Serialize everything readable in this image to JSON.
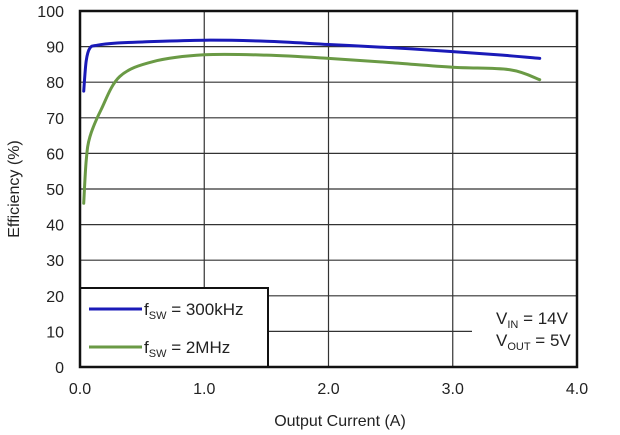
{
  "chart_data": {
    "type": "line",
    "title": "",
    "xlabel": "Output Current (A)",
    "ylabel": "Efficiency (%)",
    "xlim": [
      0,
      4
    ],
    "ylim": [
      0,
      100
    ],
    "xticks": [
      "0.0",
      "1.0",
      "2.0",
      "3.0",
      "4.0"
    ],
    "yticks": [
      "0",
      "10",
      "20",
      "30",
      "40",
      "50",
      "60",
      "70",
      "80",
      "90",
      "100"
    ],
    "grid": true,
    "legend_position": "bottom-left",
    "series": [
      {
        "name": "fSW = 300kHz",
        "label_main": "f",
        "label_sub": "SW",
        "label_rest": " = 300kHz",
        "color": "#1a1ab8",
        "x": [
          0.03,
          0.05,
          0.08,
          0.14,
          0.3,
          0.5,
          1.0,
          1.5,
          2.0,
          2.5,
          3.0,
          3.4,
          3.7
        ],
        "y": [
          77.5,
          86,
          89.6,
          90.4,
          91.0,
          91.3,
          91.8,
          91.5,
          90.6,
          89.7,
          88.6,
          87.6,
          86.7
        ]
      },
      {
        "name": "fSW = 2MHz",
        "label_main": "f",
        "label_sub": "SW",
        "label_rest": " = 2MHz",
        "color": "#6a9a45",
        "x": [
          0.03,
          0.05,
          0.08,
          0.17,
          0.32,
          0.59,
          1.0,
          1.5,
          2.0,
          2.5,
          3.0,
          3.46,
          3.7
        ],
        "y": [
          46,
          58,
          64.7,
          72.3,
          81.6,
          85.8,
          87.7,
          87.6,
          86.7,
          85.5,
          84.2,
          83.5,
          80.7
        ]
      }
    ],
    "annotation": {
      "vin_main": "V",
      "vin_sub": "IN",
      "vin_rest": " = 14V",
      "vout_main": "V",
      "vout_sub": "OUT",
      "vout_rest": " = 5V"
    }
  }
}
